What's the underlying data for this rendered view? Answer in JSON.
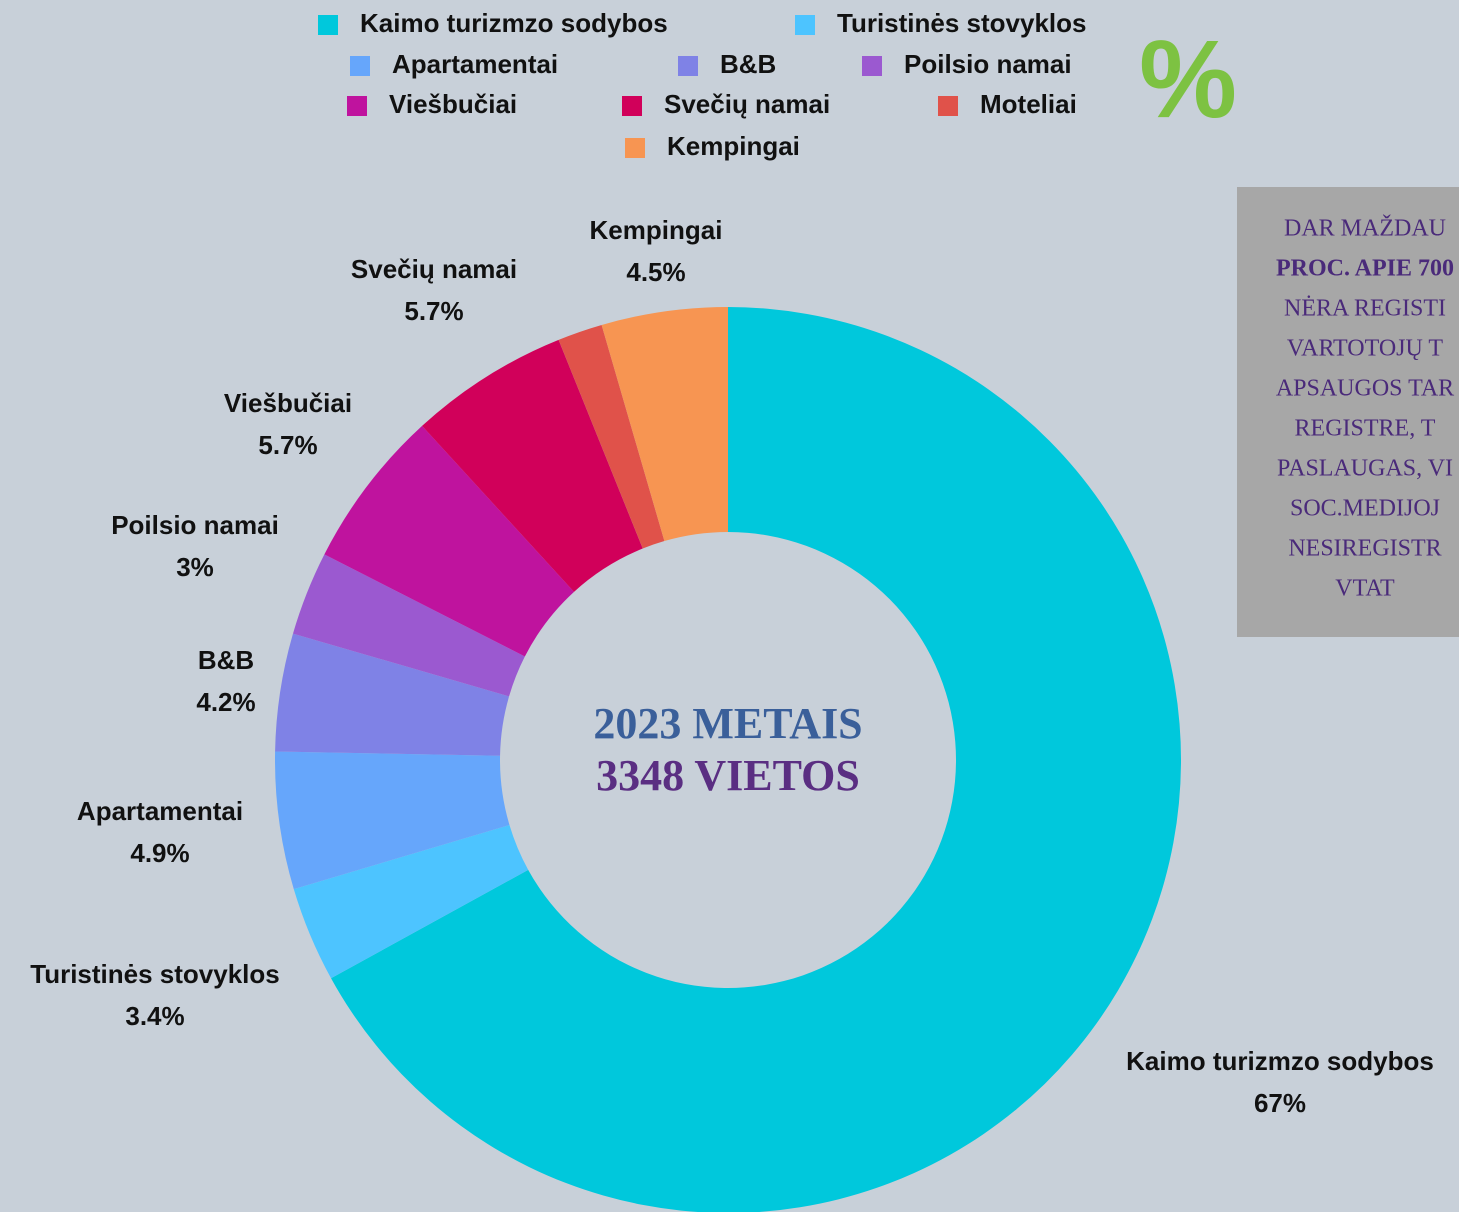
{
  "chart_data": {
    "type": "donut",
    "categories": [
      "Kaimo turizmzo sodybos",
      "Turistinės stovyklos",
      "Apartamentai",
      "B&B",
      "Poilsio namai",
      "Viešbučiai",
      "Svečių namai",
      "Moteliai",
      "Kempingai"
    ],
    "values": [
      67,
      3.4,
      4.9,
      4.2,
      3,
      5.7,
      5.7,
      1.6,
      4.5
    ],
    "value_labels": [
      "67%",
      "3.4%",
      "4.9%",
      "4.2%",
      "3%",
      "5.7%",
      "5.7%",
      null,
      "4.5%"
    ],
    "colors": [
      "#00c8dc",
      "#4dc4ff",
      "#66a6fb",
      "#7f82e6",
      "#9b59d0",
      "#bf139e",
      "#d1005a",
      "#e0524a",
      "#f79552"
    ],
    "center_text": [
      "2023 METAIS",
      "3348 VIETOS"
    ],
    "symbol": "%",
    "note": {
      "lines": [
        "DAR MAŽDAU",
        "PROC. APIE 700",
        "NĖRA REGISTI",
        "VARTOTOJŲ T",
        "APSAUGOS TAR",
        "REGISTRE, T",
        "PASLAUGAS, VI",
        "SOC.MEDIJOJ",
        "NESIREGISTR",
        "VTAT"
      ],
      "bold_lines": [
        1
      ]
    }
  }
}
